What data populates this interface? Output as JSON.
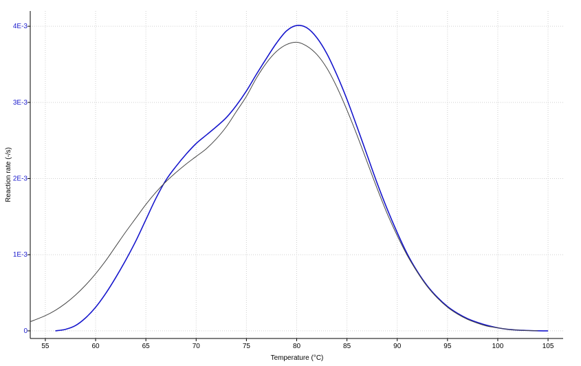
{
  "chart_data": {
    "type": "line",
    "title": "",
    "xlabel": "Temperature (°C)",
    "ylabel": "Reaction rate (-/s)",
    "xlim": [
      53.5,
      106.5
    ],
    "ylim": [
      -0.0001,
      0.0042
    ],
    "grid": true,
    "x_ticks": [
      55,
      60,
      65,
      70,
      75,
      80,
      85,
      90,
      95,
      100,
      105
    ],
    "x_tick_labels": [
      "55",
      "60",
      "65",
      "70",
      "75",
      "80",
      "85",
      "90",
      "95",
      "100",
      "105"
    ],
    "y_ticks": [
      0,
      0.001,
      0.002,
      0.003,
      0.004
    ],
    "y_tick_labels": [
      "0",
      "1E-3",
      "2E-3",
      "3E-3",
      "4E-3"
    ],
    "colors": {
      "blue_series": "#1515cc",
      "gray_series": "#444444",
      "grid": "#cfcfcf",
      "ytick_text": "#1a1acc"
    },
    "series": [
      {
        "color": "#1515cc",
        "x": [
          56,
          57,
          58,
          59,
          60,
          61,
          62,
          63,
          64,
          65,
          66,
          67,
          68,
          69,
          70,
          71,
          72,
          73,
          74,
          75,
          76,
          77,
          78,
          79,
          80,
          81,
          82,
          83,
          84,
          85,
          86,
          87,
          88,
          89,
          90,
          91,
          92,
          93,
          94,
          95,
          96,
          97,
          98,
          99,
          100,
          101,
          102,
          103,
          104,
          105
        ],
        "y": [
          0,
          2e-05,
          7e-05,
          0.00017,
          0.00031,
          0.00049,
          0.0007,
          0.00093,
          0.00118,
          0.00146,
          0.00174,
          0.00198,
          0.00216,
          0.00232,
          0.00246,
          0.00257,
          0.00268,
          0.0028,
          0.00296,
          0.00315,
          0.00337,
          0.00358,
          0.00378,
          0.00394,
          0.00401,
          0.00398,
          0.00385,
          0.00364,
          0.00336,
          0.00304,
          0.00268,
          0.00231,
          0.00194,
          0.0016,
          0.00129,
          0.00101,
          0.00078,
          0.00059,
          0.00044,
          0.00032,
          0.00023,
          0.00016,
          0.00011,
          7e-05,
          4e-05,
          2e-05,
          1e-05,
          5e-06,
          1e-06,
          0
        ]
      },
      {
        "color": "#444444",
        "x": [
          53.5,
          55,
          56,
          57,
          58,
          59,
          60,
          61,
          62,
          63,
          64,
          65,
          66,
          67,
          68,
          69,
          70,
          71,
          72,
          73,
          74,
          75,
          76,
          77,
          78,
          79,
          80,
          81,
          82,
          83,
          84,
          85,
          86,
          87,
          88,
          89,
          90,
          91,
          92,
          93,
          94,
          95,
          96,
          97,
          98,
          99,
          100,
          101,
          102,
          103,
          104
        ],
        "y": [
          0.00012,
          0.0002,
          0.00027,
          0.00036,
          0.00047,
          0.0006,
          0.00075,
          0.00092,
          0.00111,
          0.0013,
          0.00148,
          0.00166,
          0.00182,
          0.00196,
          0.00208,
          0.00219,
          0.00229,
          0.00239,
          0.00252,
          0.00268,
          0.00288,
          0.00308,
          0.00332,
          0.00352,
          0.00367,
          0.00376,
          0.00379,
          0.00374,
          0.00363,
          0.00345,
          0.0032,
          0.0029,
          0.00257,
          0.00222,
          0.00187,
          0.00154,
          0.00125,
          0.00099,
          0.00077,
          0.00058,
          0.00043,
          0.00031,
          0.00022,
          0.00015,
          0.0001,
          6e-05,
          4e-05,
          2e-05,
          1e-05,
          4e-06,
          1e-06
        ]
      }
    ]
  }
}
